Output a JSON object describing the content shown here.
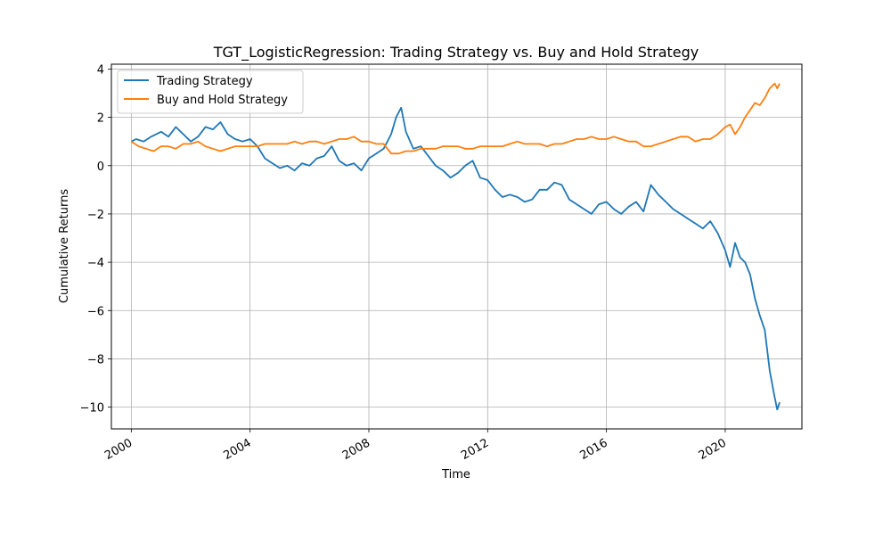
{
  "chart_data": {
    "type": "line",
    "title": "TGT_LogisticRegression: Trading Strategy vs. Buy and Hold Strategy",
    "xlabel": "Time",
    "ylabel": "Cumulative Returns",
    "xlim": [
      "1999-05-01",
      "2022-08-01"
    ],
    "ylim": [
      -10.9,
      4.2
    ],
    "xticks": [
      2000,
      2004,
      2008,
      2012,
      2016,
      2020
    ],
    "yticks": [
      4,
      2,
      0,
      -2,
      -4,
      -6,
      -8,
      -10
    ],
    "ytick_labels": [
      "4",
      "2",
      "0",
      "−2",
      "−4",
      "−6",
      "−8",
      "−10"
    ],
    "grid": true,
    "legend_position": "top-left",
    "series": [
      {
        "name": "Trading Strategy",
        "color": "#1f77b4",
        "x": [
          "2000-01-01",
          "2000-03-01",
          "2000-06-01",
          "2000-09-01",
          "2001-01-01",
          "2001-04-01",
          "2001-07-01",
          "2001-10-01",
          "2002-01-01",
          "2002-04-01",
          "2002-07-01",
          "2002-10-01",
          "2003-01-01",
          "2003-04-01",
          "2003-07-01",
          "2003-10-01",
          "2004-01-01",
          "2004-04-01",
          "2004-07-01",
          "2004-10-01",
          "2005-01-01",
          "2005-04-01",
          "2005-07-01",
          "2005-10-01",
          "2006-01-01",
          "2006-04-01",
          "2006-07-01",
          "2006-10-01",
          "2007-01-01",
          "2007-04-01",
          "2007-07-01",
          "2007-10-01",
          "2008-01-01",
          "2008-04-01",
          "2008-07-01",
          "2008-10-01",
          "2008-12-01",
          "2009-02-01",
          "2009-04-01",
          "2009-07-01",
          "2009-10-01",
          "2010-01-01",
          "2010-04-01",
          "2010-07-01",
          "2010-10-01",
          "2011-01-01",
          "2011-04-01",
          "2011-07-01",
          "2011-10-01",
          "2012-01-01",
          "2012-04-01",
          "2012-07-01",
          "2012-10-01",
          "2013-01-01",
          "2013-04-01",
          "2013-07-01",
          "2013-10-01",
          "2014-01-01",
          "2014-04-01",
          "2014-07-01",
          "2014-10-01",
          "2015-01-01",
          "2015-04-01",
          "2015-07-01",
          "2015-10-01",
          "2016-01-01",
          "2016-04-01",
          "2016-07-01",
          "2016-10-01",
          "2017-01-01",
          "2017-04-01",
          "2017-07-01",
          "2017-10-01",
          "2018-01-01",
          "2018-04-01",
          "2018-07-01",
          "2018-10-01",
          "2019-01-01",
          "2019-04-01",
          "2019-07-01",
          "2019-10-01",
          "2020-01-01",
          "2020-03-01",
          "2020-05-01",
          "2020-07-01",
          "2020-09-01",
          "2020-11-01",
          "2021-01-01",
          "2021-03-01",
          "2021-05-01",
          "2021-07-01",
          "2021-09-01",
          "2021-10-01",
          "2021-11-01"
        ],
        "y": [
          1.0,
          1.1,
          1.0,
          1.2,
          1.4,
          1.2,
          1.6,
          1.3,
          1.0,
          1.2,
          1.6,
          1.5,
          1.8,
          1.3,
          1.1,
          1.0,
          1.1,
          0.8,
          0.3,
          0.1,
          -0.1,
          0.0,
          -0.2,
          0.1,
          0.0,
          0.3,
          0.4,
          0.8,
          0.2,
          0.0,
          0.1,
          -0.2,
          0.3,
          0.5,
          0.7,
          1.3,
          2.0,
          2.4,
          1.4,
          0.7,
          0.8,
          0.4,
          0.0,
          -0.2,
          -0.5,
          -0.3,
          0.0,
          0.2,
          -0.5,
          -0.6,
          -1.0,
          -1.3,
          -1.2,
          -1.3,
          -1.5,
          -1.4,
          -1.0,
          -1.0,
          -0.7,
          -0.8,
          -1.4,
          -1.6,
          -1.8,
          -2.0,
          -1.6,
          -1.5,
          -1.8,
          -2.0,
          -1.7,
          -1.5,
          -1.9,
          -0.8,
          -1.2,
          -1.5,
          -1.8,
          -2.0,
          -2.2,
          -2.4,
          -2.6,
          -2.3,
          -2.8,
          -3.5,
          -4.2,
          -3.2,
          -3.8,
          -4.0,
          -4.5,
          -5.5,
          -6.2,
          -6.8,
          -8.5,
          -9.6,
          -10.1,
          -9.8
        ]
      },
      {
        "name": "Buy and Hold Strategy",
        "color": "#ff7f0e",
        "x": [
          "2000-01-01",
          "2000-04-01",
          "2000-07-01",
          "2000-10-01",
          "2001-01-01",
          "2001-04-01",
          "2001-07-01",
          "2001-10-01",
          "2002-01-01",
          "2002-04-01",
          "2002-07-01",
          "2002-10-01",
          "2003-01-01",
          "2003-04-01",
          "2003-07-01",
          "2003-10-01",
          "2004-01-01",
          "2004-04-01",
          "2004-07-01",
          "2004-10-01",
          "2005-01-01",
          "2005-04-01",
          "2005-07-01",
          "2005-10-01",
          "2006-01-01",
          "2006-04-01",
          "2006-07-01",
          "2006-10-01",
          "2007-01-01",
          "2007-04-01",
          "2007-07-01",
          "2007-10-01",
          "2008-01-01",
          "2008-04-01",
          "2008-07-01",
          "2008-10-01",
          "2009-01-01",
          "2009-04-01",
          "2009-07-01",
          "2009-10-01",
          "2010-01-01",
          "2010-04-01",
          "2010-07-01",
          "2010-10-01",
          "2011-01-01",
          "2011-04-01",
          "2011-07-01",
          "2011-10-01",
          "2012-01-01",
          "2012-04-01",
          "2012-07-01",
          "2012-10-01",
          "2013-01-01",
          "2013-04-01",
          "2013-07-01",
          "2013-10-01",
          "2014-01-01",
          "2014-04-01",
          "2014-07-01",
          "2014-10-01",
          "2015-01-01",
          "2015-04-01",
          "2015-07-01",
          "2015-10-01",
          "2016-01-01",
          "2016-04-01",
          "2016-07-01",
          "2016-10-01",
          "2017-01-01",
          "2017-04-01",
          "2017-07-01",
          "2017-10-01",
          "2018-01-01",
          "2018-04-01",
          "2018-07-01",
          "2018-10-01",
          "2019-01-01",
          "2019-04-01",
          "2019-07-01",
          "2019-10-01",
          "2020-01-01",
          "2020-03-01",
          "2020-05-01",
          "2020-07-01",
          "2020-09-01",
          "2020-11-01",
          "2021-01-01",
          "2021-03-01",
          "2021-05-01",
          "2021-07-01",
          "2021-09-01",
          "2021-10-01",
          "2021-11-01"
        ],
        "y": [
          1.0,
          0.8,
          0.7,
          0.6,
          0.8,
          0.8,
          0.7,
          0.9,
          0.9,
          1.0,
          0.8,
          0.7,
          0.6,
          0.7,
          0.8,
          0.8,
          0.8,
          0.8,
          0.9,
          0.9,
          0.9,
          0.9,
          1.0,
          0.9,
          1.0,
          1.0,
          0.9,
          1.0,
          1.1,
          1.1,
          1.2,
          1.0,
          1.0,
          0.9,
          0.9,
          0.5,
          0.5,
          0.6,
          0.6,
          0.7,
          0.7,
          0.7,
          0.8,
          0.8,
          0.8,
          0.7,
          0.7,
          0.8,
          0.8,
          0.8,
          0.8,
          0.9,
          1.0,
          0.9,
          0.9,
          0.9,
          0.8,
          0.9,
          0.9,
          1.0,
          1.1,
          1.1,
          1.2,
          1.1,
          1.1,
          1.2,
          1.1,
          1.0,
          1.0,
          0.8,
          0.8,
          0.9,
          1.0,
          1.1,
          1.2,
          1.2,
          1.0,
          1.1,
          1.1,
          1.3,
          1.6,
          1.7,
          1.3,
          1.6,
          2.0,
          2.3,
          2.6,
          2.5,
          2.8,
          3.2,
          3.4,
          3.2,
          3.4
        ]
      }
    ]
  }
}
